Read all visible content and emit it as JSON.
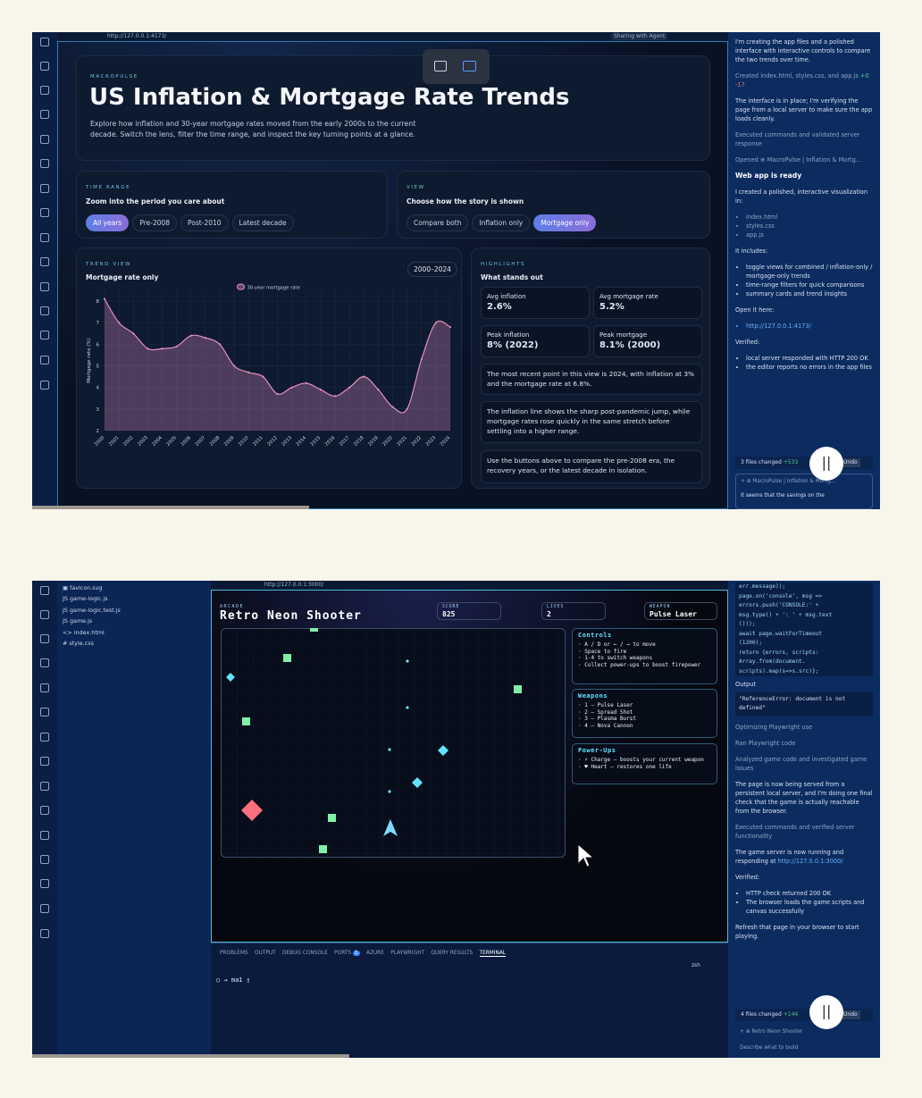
{
  "screen1": {
    "url": "http://127.0.0.1:4173/",
    "tab_badge": "Sharing with Agent",
    "hero": {
      "eyebrow": "MACROPULSE",
      "title": "US Inflation & Mortgage Rate Trends",
      "description": "Explore how inflation and 30-year mortgage rates moved from the early 2000s to the current decade. Switch the lens, filter the time range, and inspect the key turning points at a glance."
    },
    "time_range": {
      "eyebrow": "TIME RANGE",
      "heading": "Zoom into the period you care about",
      "buttons": [
        "All years",
        "Pre-2008",
        "Post-2010",
        "Latest decade"
      ],
      "active": 0
    },
    "view": {
      "eyebrow": "VIEW",
      "heading": "Choose how the story is shown",
      "buttons": [
        "Compare both",
        "Inflation only",
        "Mortgage only"
      ],
      "active": 2
    },
    "trend": {
      "eyebrow": "TREND VIEW",
      "heading": "Mortgage rate only",
      "range": "2000–2024",
      "chart": {
        "type": "line",
        "legend": "30-year mortgage rate",
        "y_label": "Mortgage rate (%)",
        "color": "#e58fc0",
        "x": [
          2000,
          2001,
          2002,
          2003,
          2004,
          2005,
          2006,
          2007,
          2008,
          2009,
          2010,
          2011,
          2012,
          2013,
          2014,
          2015,
          2016,
          2017,
          2018,
          2019,
          2020,
          2021,
          2022,
          2023,
          2024
        ],
        "values": [
          8.1,
          7.0,
          6.5,
          5.8,
          5.8,
          5.9,
          6.4,
          6.3,
          6.0,
          5.0,
          4.7,
          4.5,
          3.7,
          4.0,
          4.2,
          3.9,
          3.6,
          4.0,
          4.5,
          3.9,
          3.1,
          3.0,
          5.3,
          7.0,
          6.8
        ],
        "xlim": [
          2000,
          2024
        ],
        "xticks": [
          2000,
          2001,
          2002,
          2003,
          2004,
          2005,
          2006,
          2007,
          2008,
          2009,
          2010,
          2011,
          2012,
          2013,
          2014,
          2015,
          2016,
          2017,
          2018,
          2019,
          2020,
          2021,
          2022,
          2023,
          2024
        ],
        "ylim": [
          2,
          8.5
        ],
        "yticks": [
          2,
          3,
          4,
          5,
          6,
          7,
          8
        ],
        "grid": true
      }
    },
    "highlights": {
      "eyebrow": "HIGHLIGHTS",
      "heading": "What stands out",
      "stats": [
        {
          "label": "Avg inflation",
          "value": "2.6%"
        },
        {
          "label": "Avg mortgage rate",
          "value": "5.2%"
        },
        {
          "label": "Peak inflation",
          "value": "8% (2022)"
        },
        {
          "label": "Peak mortgage",
          "value": "8.1% (2000)"
        }
      ],
      "notes": [
        "The most recent point in this view is 2024, with inflation at 3% and the mortgage rate at 6.8%.",
        "The inflation line shows the sharp post-pandemic jump, while mortgage rates rose quickly in the same stretch before settling into a higher range.",
        "Use the buttons above to compare the pre-2008 era, the recovery years, or the latest decade in isolation."
      ]
    },
    "chat": {
      "intro": "I'm creating the app files and a polished interface with interactive controls to compare the two trends over time.",
      "created": "Created index.html, styles.css, and app.js",
      "diff_add": "+0",
      "diff_del": "-17",
      "verify": "The interface is in place; I'm verifying the page from a local server to make sure the app loads cleanly.",
      "executed": "Executed commands and validated server response",
      "opened": "Opened",
      "opened_tab": "MacroPulse | Inflation & Mortg...",
      "ready": "Web app is ready",
      "created_in": "I created a polished, interactive visualization in:",
      "files": [
        "index.html",
        "styles.css",
        "app.js"
      ],
      "includes": "It includes:",
      "features": [
        "toggle views for combined / inflation-only / mortgage-only trends",
        "time-range filters for quick comparisons",
        "summary cards and trend insights"
      ],
      "open_here": "Open it here:",
      "link": "http://127.0.0.1:4173/",
      "verified": "Verified:",
      "checks": [
        "local server responded with HTTP 200 OK",
        "the editor reports no errors in the app files"
      ],
      "changed": "3 files changed",
      "changed_add": "+533",
      "undo": "Undo",
      "context_chip": "MacroPulse | Inflation & Mortg...",
      "input": "It seems that the savings on the"
    }
  },
  "screen2": {
    "url": "http://127.0.0.1:3000/",
    "files": [
      "favicon.svg",
      "game-logic.js",
      "game-logic.test.js",
      "game.js",
      "index.html",
      "style.css"
    ],
    "game": {
      "eyebrow": "ARCADE",
      "title": "Retro Neon Shooter",
      "score_label": "SCORE",
      "score": "825",
      "lives_label": "LIVES",
      "lives": "2",
      "weapon_label": "WEAPON",
      "weapon": "Pulse Laser",
      "controls": {
        "title": "Controls",
        "lines": [
          "A / D or ← / → to move",
          "Space to fire",
          "1-4 to switch weapons",
          "Collect power-ups to boost firepower"
        ]
      },
      "weapons": {
        "title": "Weapons",
        "lines": [
          "1 — Pulse Laser",
          "2 — Spread Shot",
          "3 — Plasma Burst",
          "4 — Nova Cannon"
        ]
      },
      "powerups": {
        "title": "Power-Ups",
        "lines": [
          "⚡ Charge — boosts your current weapon",
          "♥ Heart — restores one life"
        ]
      }
    },
    "panel": {
      "tabs": [
        "PROBLEMS",
        "OUTPUT",
        "DEBUG CONSOLE",
        "PORTS",
        "AZURE",
        "PLAYWRIGHT",
        "QUERY RESULTS",
        "TERMINAL"
      ],
      "ports_badge": "1",
      "shell": "zsh",
      "prompt": "→ ma1"
    },
    "chat": {
      "code": [
        "err.message));",
        "page.on('console', msg =>",
        "errors.push('CONSOLE:' +",
        "msg.type() + ': ' + msg.text",
        "()));",
        "await page.waitForTimeout",
        "(1200);",
        "return {errors, scripts:",
        "Array.from(document.",
        "scripts).map(s=>s.src)};"
      ],
      "output_label": "Output",
      "output": "\"ReferenceError: document is not defined\"",
      "steps": [
        "Optimizing Playwright use",
        "Ran Playwright code",
        "Analyzed game code and investigated game issues"
      ],
      "served": "The page is now being served from a persistent local server, and I'm doing one final check that the game is actually reachable from the browser.",
      "executed": "Executed commands and verified server functionality",
      "running": "The game server is now running and responding at",
      "link": "http://127.0.0.1:3000/",
      "verified": "Verified:",
      "checks": [
        "HTTP check returned 200 OK",
        "The browser loads the game scripts and canvas successfully"
      ],
      "refresh": "Refresh that page in your browser to start playing.",
      "changed": "4 files changed",
      "changed_add": "+144",
      "undo": "Undo",
      "context_chip": "Retro Neon Shooter",
      "input": "Describe what to build"
    }
  }
}
